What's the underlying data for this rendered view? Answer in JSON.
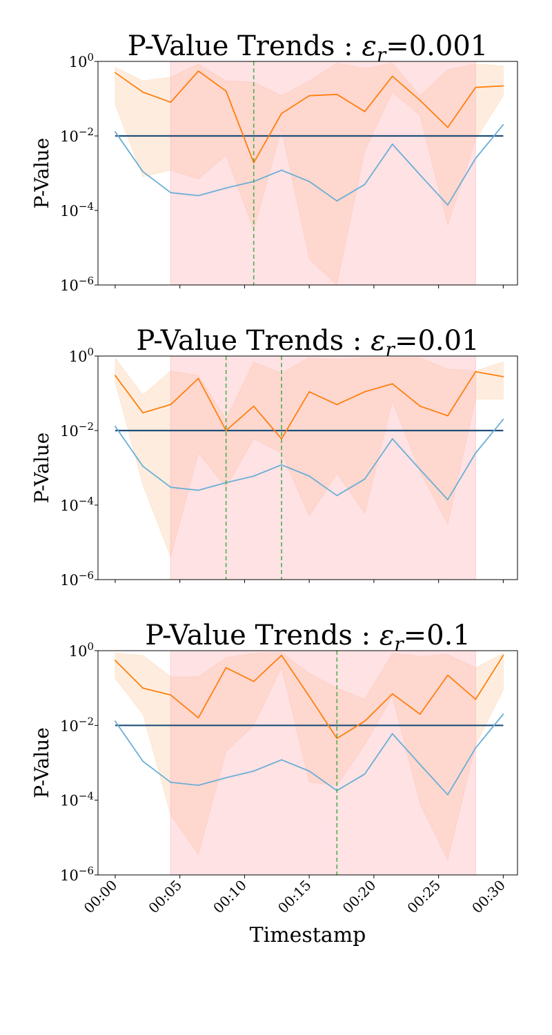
{
  "colors": {
    "orange": "#ff7f0e",
    "orange_band": "#fde3cc",
    "pink_band": "#ffb3b8",
    "blue": "#6aaed6",
    "threshold": "#1f4e79",
    "green_dash": "#4caf50",
    "axes": "#000000"
  },
  "figure": {
    "xlabel": "Timestamp",
    "ylabel": "P-Value",
    "x_tick_labels": [
      "00:00",
      "00:05",
      "00:10",
      "00:15",
      "00:20",
      "00:25",
      "00:30"
    ],
    "y_tick_labels": [
      {
        "base": "10",
        "exp": "0"
      },
      {
        "base": "10",
        "exp": "−2"
      },
      {
        "base": "10",
        "exp": "−4"
      },
      {
        "base": "10",
        "exp": "−6"
      }
    ]
  },
  "chart_data": [
    {
      "type": "line",
      "title_prefix": "P-Value Trends : ",
      "eps_symbol": "ε",
      "eps_sub": "r",
      "eps_value": "=0.001",
      "title": "P-Value Trends : ε_r=0.001",
      "xlabel": "Timestamp",
      "ylabel": "P-Value",
      "yscale": "log",
      "ylim": [
        1e-06,
        1
      ],
      "x_minutes": [
        0,
        2.14,
        4.29,
        6.43,
        8.57,
        10.71,
        12.86,
        15,
        17.14,
        19.29,
        21.43,
        23.57,
        25.71,
        27.86,
        30
      ],
      "series": [
        {
          "name": "orange",
          "values": [
            0.5,
            0.15,
            0.08,
            0.55,
            0.16,
            0.0019,
            0.04,
            0.12,
            0.13,
            0.045,
            0.4,
            0.09,
            0.017,
            0.2,
            0.22
          ]
        },
        {
          "name": "blue",
          "values": [
            0.013,
            0.0011,
            0.0003,
            0.00025,
            0.0004,
            0.0006,
            0.0012,
            0.0006,
            0.00018,
            0.0005,
            0.006,
            0.0009,
            0.00014,
            0.0025,
            0.02
          ]
        }
      ],
      "band_upper": [
        0.7,
        0.3,
        0.38,
        0.85,
        0.3,
        0.28,
        0.12,
        0.3,
        0.9,
        0.65,
        0.9,
        0.12,
        0.6,
        0.85,
        0.75
      ],
      "band_lower": [
        0.07,
        0.0008,
        0.0012,
        0.0007,
        0.003,
        3e-05,
        0.015,
        5e-06,
        8e-07,
        0.004,
        0.15,
        0.035,
        4e-05,
        0.008,
        0.12
      ],
      "threshold": 0.01,
      "highlight_range_minutes": [
        4.29,
        27.86
      ],
      "vlines_minutes": [
        10.71
      ]
    },
    {
      "type": "line",
      "title_prefix": "P-Value Trends : ",
      "eps_symbol": "ε",
      "eps_sub": "r",
      "eps_value": "=0.01",
      "title": "P-Value Trends : ε_r=0.01",
      "xlabel": "Timestamp",
      "ylabel": "P-Value",
      "yscale": "log",
      "ylim": [
        1e-06,
        1
      ],
      "x_minutes": [
        0,
        2.14,
        4.29,
        6.43,
        8.57,
        10.71,
        12.86,
        15,
        17.14,
        19.29,
        21.43,
        23.57,
        25.71,
        27.86,
        30
      ],
      "series": [
        {
          "name": "orange",
          "values": [
            0.3,
            0.03,
            0.05,
            0.25,
            0.01,
            0.045,
            0.006,
            0.11,
            0.05,
            0.11,
            0.18,
            0.045,
            0.025,
            0.38,
            0.28
          ]
        },
        {
          "name": "blue",
          "values": [
            0.013,
            0.0011,
            0.0003,
            0.00025,
            0.0004,
            0.0006,
            0.0012,
            0.0006,
            0.00018,
            0.0005,
            0.006,
            0.0009,
            0.00014,
            0.0025,
            0.02
          ]
        }
      ],
      "band_upper": [
        0.9,
        0.09,
        0.4,
        0.3,
        0.02,
        0.7,
        0.35,
        0.9,
        0.8,
        0.9,
        0.9,
        0.9,
        0.45,
        0.4,
        0.7
      ],
      "band_lower": [
        0.2,
        0.00035,
        4e-06,
        0.0025,
        0.0003,
        0.006,
        0.0025,
        5e-05,
        0.0007,
        6e-05,
        0.06,
        0.0008,
        3e-05,
        0.07,
        0.07
      ],
      "threshold": 0.01,
      "highlight_range_minutes": [
        4.29,
        27.86
      ],
      "vlines_minutes": [
        8.57,
        12.86
      ]
    },
    {
      "type": "line",
      "title_prefix": "P-Value Trends : ",
      "eps_symbol": "ε",
      "eps_sub": "r",
      "eps_value": "=0.1",
      "title": "P-Value Trends : ε_r=0.1",
      "xlabel": "Timestamp",
      "ylabel": "P-Value",
      "yscale": "log",
      "ylim": [
        1e-06,
        1
      ],
      "x_minutes": [
        0,
        2.14,
        4.29,
        6.43,
        8.57,
        10.71,
        12.86,
        15,
        17.14,
        19.29,
        21.43,
        23.57,
        25.71,
        27.86,
        30
      ],
      "series": [
        {
          "name": "orange",
          "values": [
            0.55,
            0.1,
            0.065,
            0.016,
            0.35,
            0.15,
            0.75,
            0.06,
            0.0045,
            0.013,
            0.07,
            0.02,
            0.22,
            0.05,
            0.75
          ]
        },
        {
          "name": "blue",
          "values": [
            0.013,
            0.0011,
            0.0003,
            0.00025,
            0.0004,
            0.0006,
            0.0012,
            0.0006,
            0.00018,
            0.0005,
            0.006,
            0.0009,
            0.00014,
            0.0025,
            0.02
          ]
        }
      ],
      "band_upper": [
        0.85,
        0.75,
        0.2,
        0.2,
        0.65,
        0.85,
        0.9,
        0.25,
        0.1,
        0.05,
        0.85,
        0.7,
        0.8,
        0.35,
        0.85
      ],
      "band_lower": [
        0.18,
        0.02,
        4e-05,
        3.5e-06,
        0.002,
        0.01,
        0.35,
        0.0003,
        0.00025,
        0.003,
        0.06,
        8e-05,
        2.5e-06,
        0.003,
        0.09
      ],
      "threshold": 0.01,
      "highlight_range_minutes": [
        4.29,
        27.86
      ],
      "vlines_minutes": [
        17.14
      ]
    }
  ]
}
